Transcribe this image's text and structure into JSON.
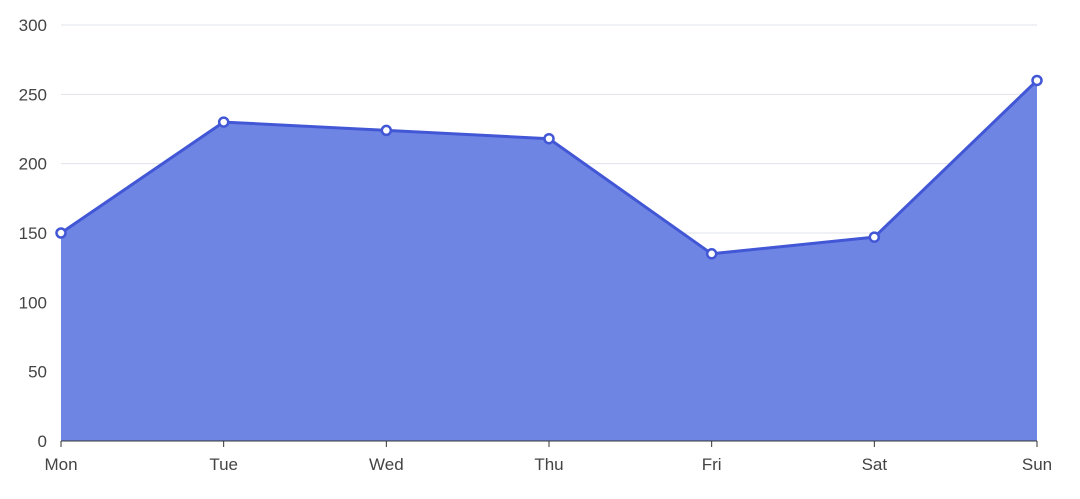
{
  "chart_data": {
    "type": "area",
    "title": "",
    "xlabel": "",
    "ylabel": "",
    "categories": [
      "Mon",
      "Tue",
      "Wed",
      "Thu",
      "Fri",
      "Sat",
      "Sun"
    ],
    "values": [
      150,
      230,
      224,
      218,
      135,
      147,
      260
    ],
    "ylim": [
      0,
      300
    ],
    "yticks": [
      0,
      50,
      100,
      150,
      200,
      250,
      300
    ],
    "grid": true,
    "colors": {
      "line": "#4257d6",
      "area": "#6f85e3",
      "grid": "#e0e3ea",
      "axis": "#333333"
    }
  }
}
